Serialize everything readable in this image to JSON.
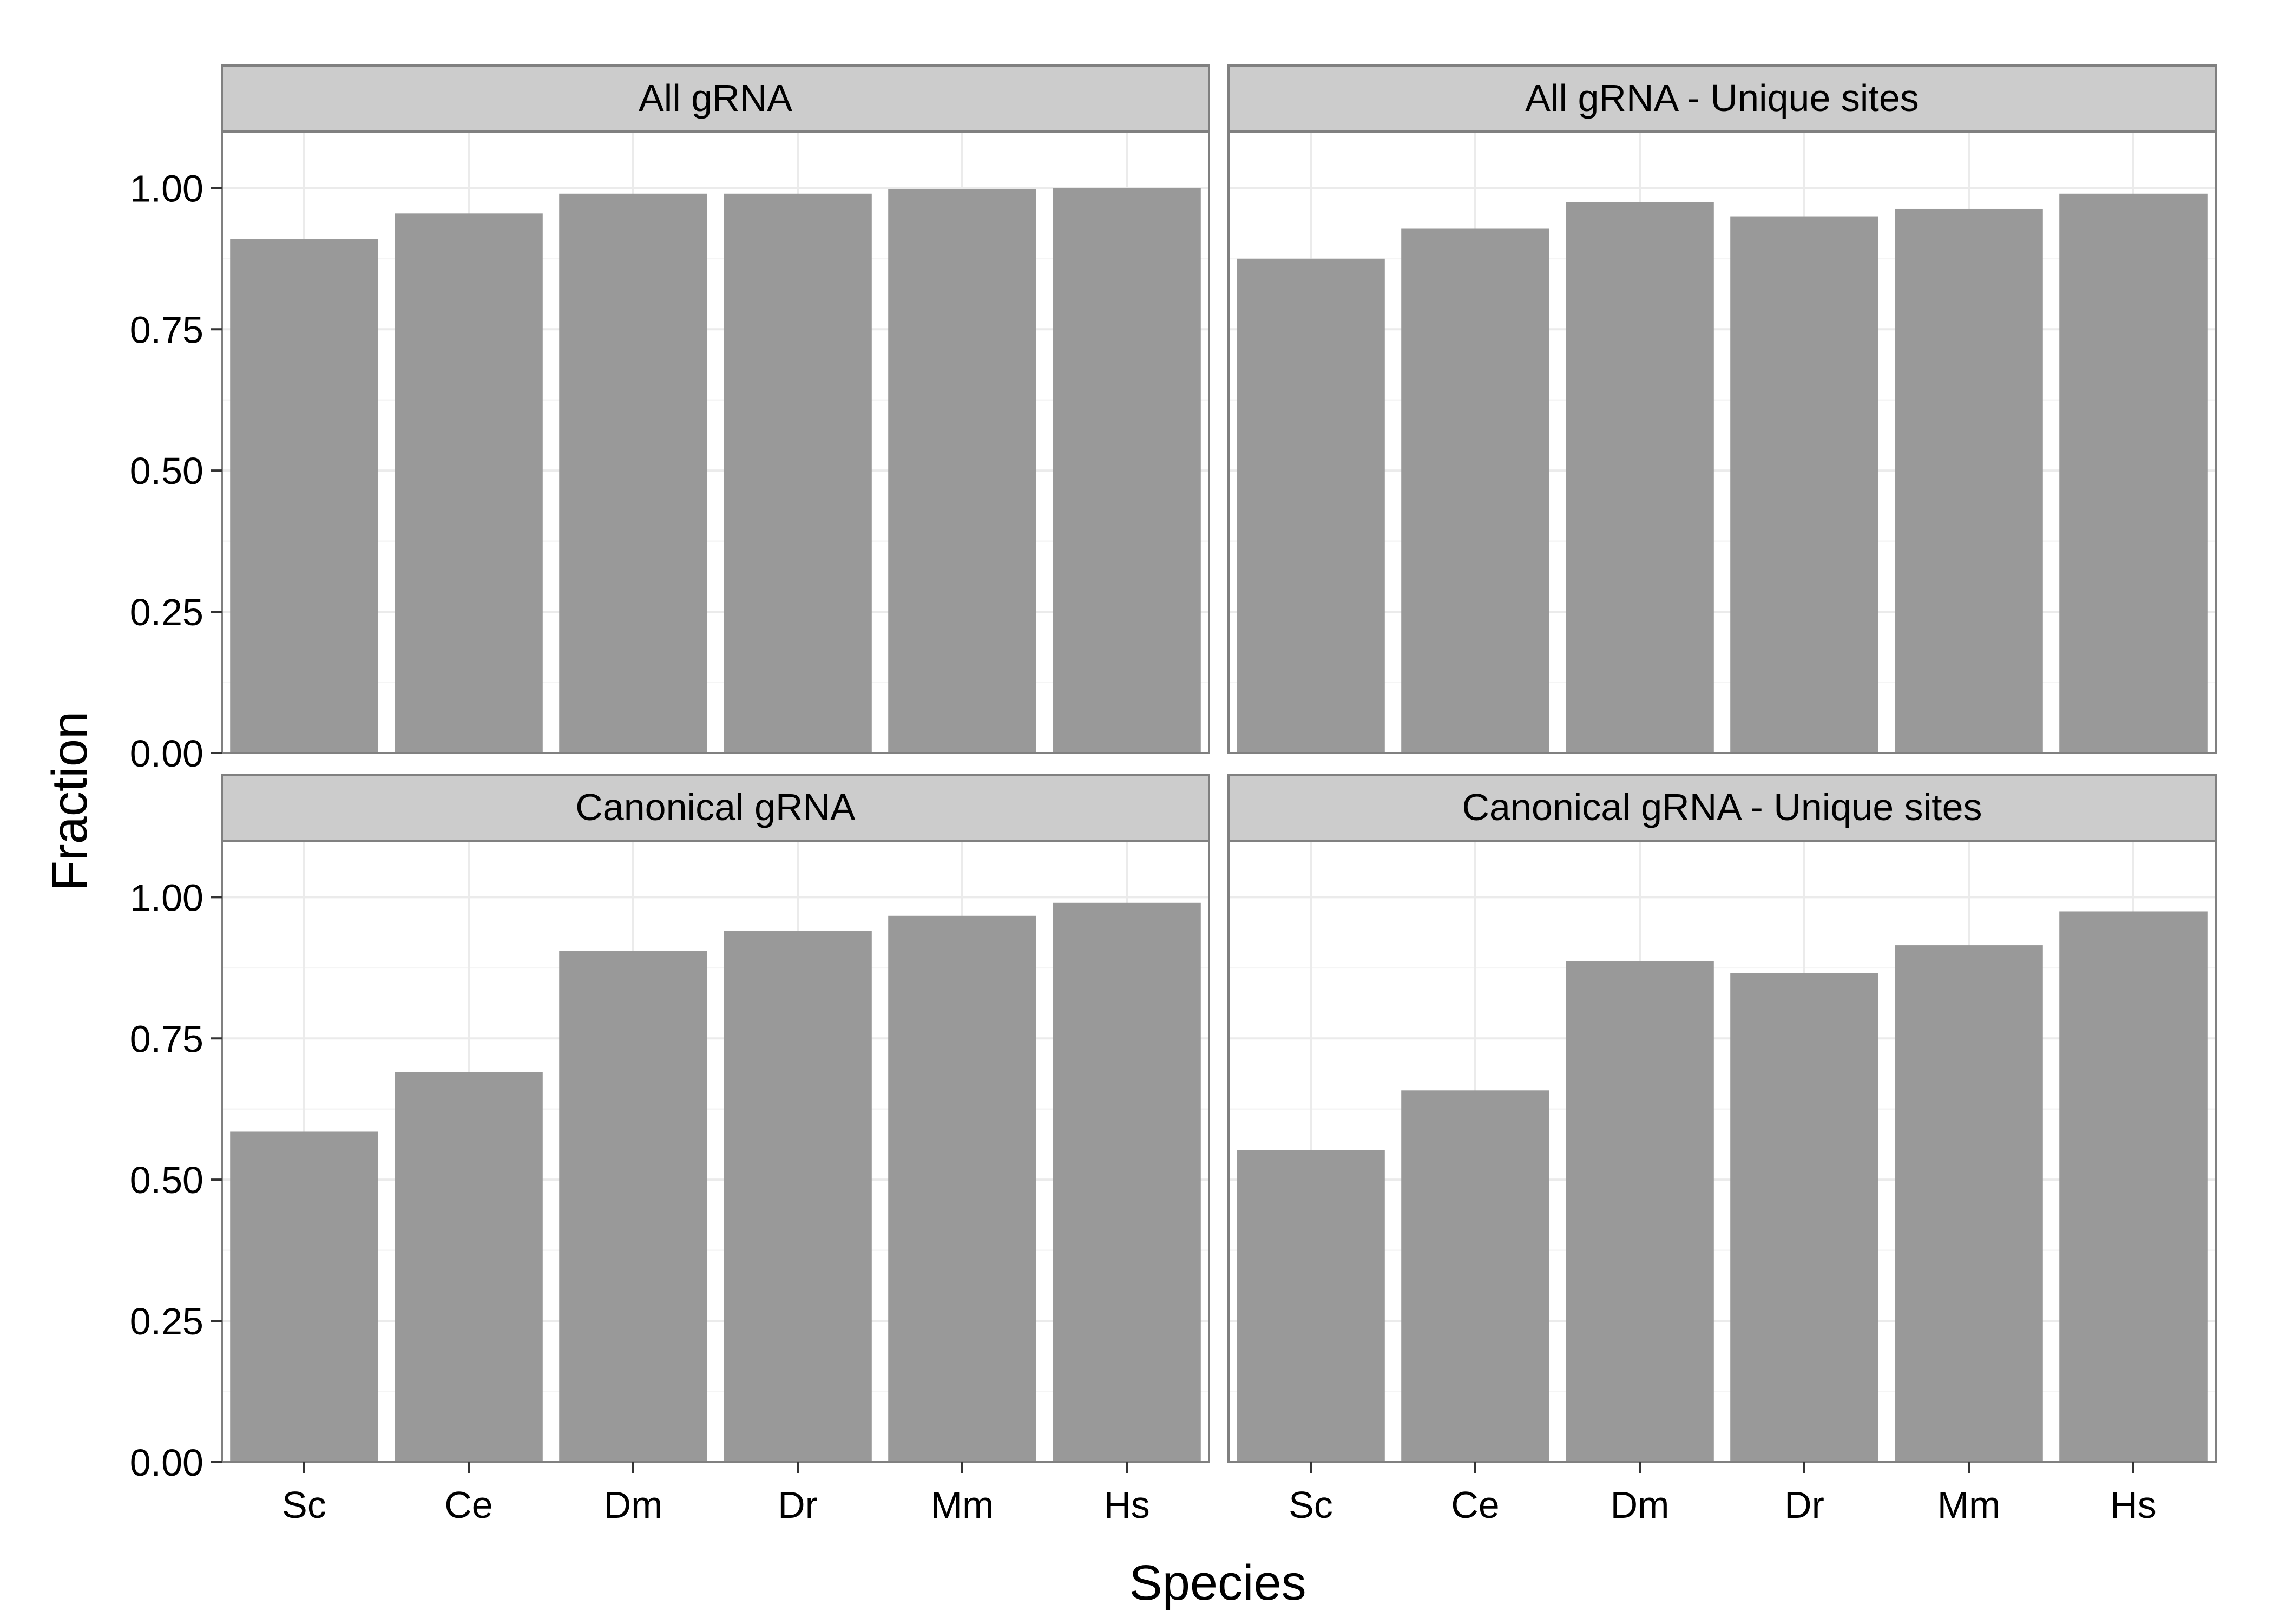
{
  "chart_data": {
    "type": "bar",
    "xlabel": "Species",
    "ylabel": "Fraction",
    "categories": [
      "Sc",
      "Ce",
      "Dm",
      "Dr",
      "Mm",
      "Hs"
    ],
    "ylim": [
      0,
      1.1
    ],
    "yticks": [
      "0.00",
      "0.25",
      "0.50",
      "0.75",
      "1.00"
    ],
    "grid": true,
    "bar_color": "#999999",
    "panels": [
      {
        "title": "All gRNA",
        "values": [
          0.91,
          0.955,
          0.99,
          0.99,
          0.998,
          1.0
        ]
      },
      {
        "title": "All gRNA - Unique sites",
        "values": [
          0.875,
          0.928,
          0.975,
          0.95,
          0.963,
          0.99
        ]
      },
      {
        "title": "Canonical gRNA",
        "values": [
          0.585,
          0.69,
          0.905,
          0.94,
          0.967,
          0.99
        ]
      },
      {
        "title": "Canonical gRNA - Unique sites",
        "values": [
          0.552,
          0.658,
          0.887,
          0.866,
          0.915,
          0.975
        ]
      }
    ]
  }
}
